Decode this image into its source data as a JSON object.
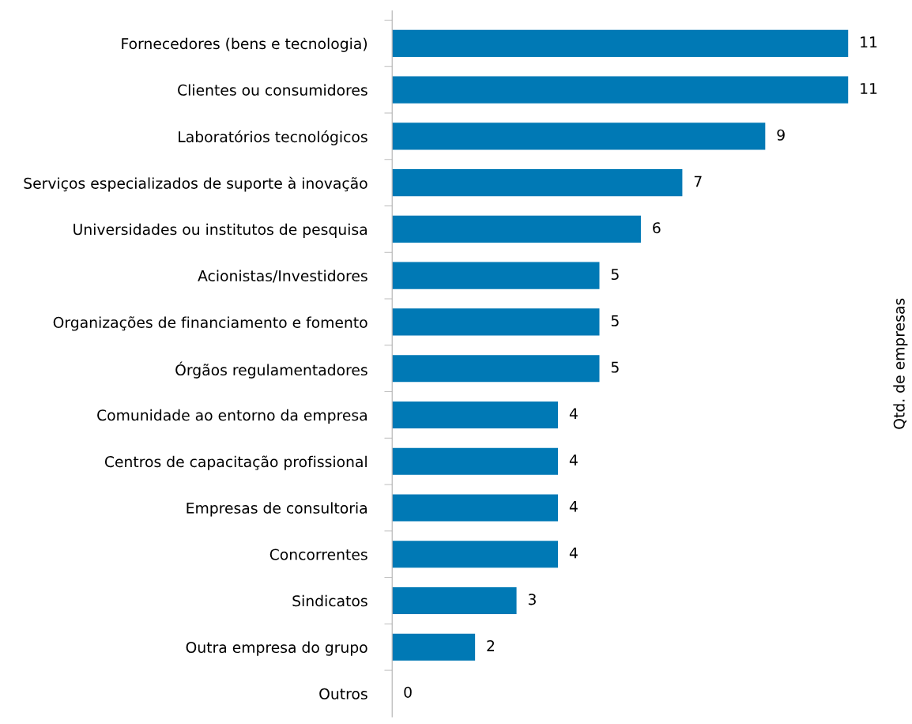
{
  "chart_data": {
    "type": "bar",
    "orientation": "horizontal",
    "ylabel": "Qtd. de empresas",
    "categories": [
      "Fornecedores (bens e tecnologia)",
      "Clientes ou consumidores",
      "Laboratórios tecnológicos",
      "Serviços especializados de suporte à inovação",
      "Universidades ou institutos de pesquisa",
      "Acionistas/Investidores",
      "Organizações de financiamento e fomento",
      "Órgãos regulamentadores",
      "Comunidade ao entorno da empresa",
      "Centros de capacitação profissional",
      "Empresas de consultoria",
      "Concorrentes",
      "Sindicatos",
      "Outra empresa do grupo",
      "Outros"
    ],
    "values": [
      11,
      11,
      9,
      7,
      6,
      5,
      5,
      5,
      4,
      4,
      4,
      4,
      3,
      2,
      0
    ],
    "color": "#0079b5",
    "data_labels": true,
    "grid": false,
    "legend": false
  }
}
